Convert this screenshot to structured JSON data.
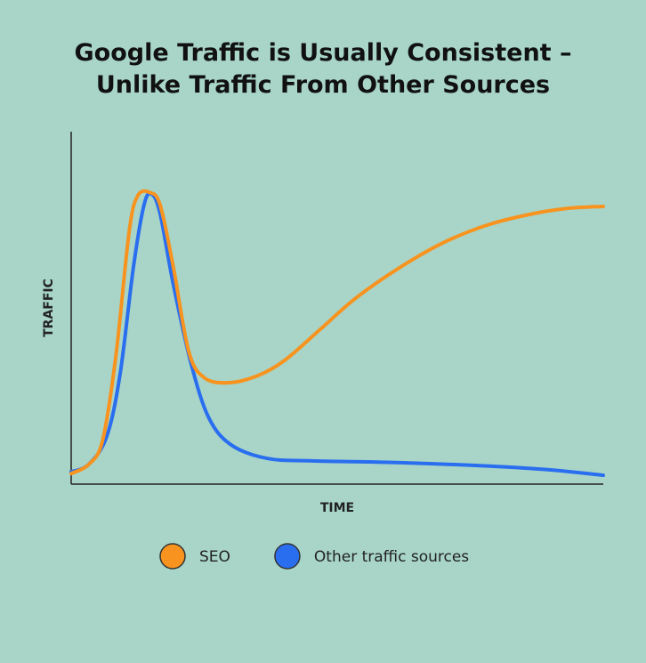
{
  "chart_data": {
    "type": "line",
    "title": "Google Traffic is Usually Consistent – Unlike Traffic From Other Sources",
    "x_label": "TIME",
    "y_label": "TRAFFIC",
    "xlim": [
      0,
      100
    ],
    "ylim": [
      0,
      100
    ],
    "series": [
      {
        "name": "SEO",
        "color": "#f7931e",
        "x": [
          0,
          3.3,
          5.9,
          8.4,
          10.9,
          12.5,
          14.7,
          16.7,
          19.2,
          22.1,
          25.1,
          29.8,
          35.1,
          40.1,
          46.8,
          53.5,
          61.9,
          70.2,
          78.6,
          87.0,
          93.6,
          100
        ],
        "values": [
          3,
          5.6,
          12.4,
          36.4,
          71.7,
          81.8,
          82.8,
          79.3,
          61.6,
          37.6,
          30.1,
          28.8,
          30.8,
          35.1,
          43.9,
          52.8,
          61.6,
          68.7,
          73.7,
          76.8,
          78.3,
          78.8
        ]
      },
      {
        "name": "Other traffic sources",
        "color": "#2a6ef0",
        "x": [
          0,
          3.3,
          6.7,
          9.2,
          11.7,
          13.7,
          15.1,
          16.7,
          19.2,
          22.6,
          25.9,
          30.1,
          36.8,
          45.2,
          61.9,
          78.6,
          90.3,
          100
        ],
        "values": [
          3.5,
          5.6,
          13.6,
          31.3,
          61.6,
          79.3,
          82.3,
          76.8,
          56.6,
          33.8,
          18.7,
          11.1,
          7.3,
          6.6,
          6.1,
          5.1,
          4.0,
          2.5
        ]
      }
    ]
  }
}
